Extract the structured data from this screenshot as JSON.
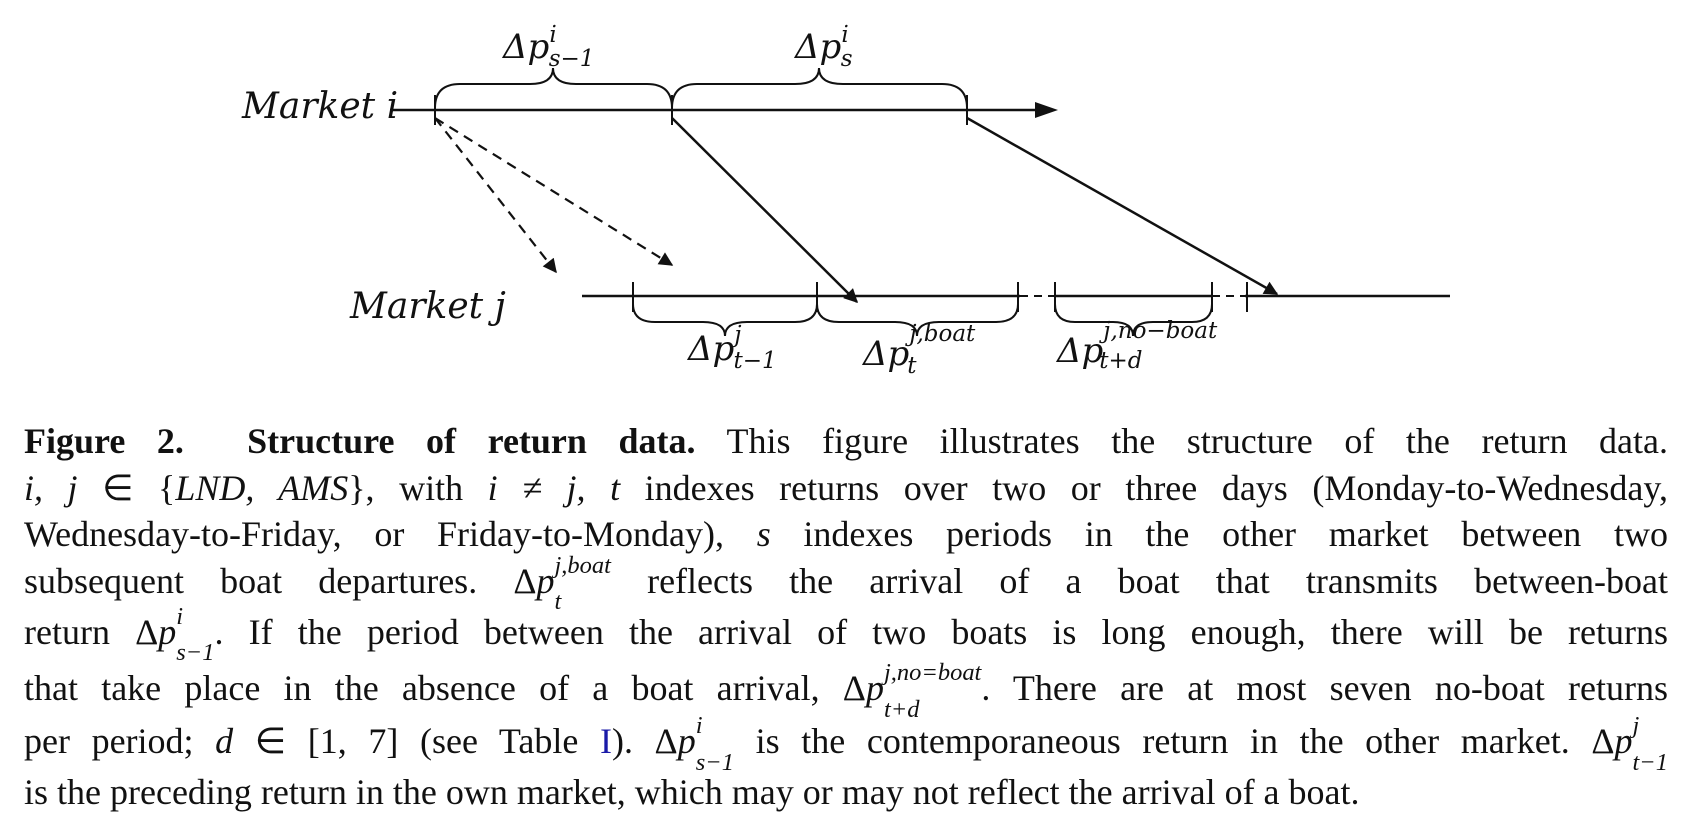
{
  "figure": {
    "market_i": "Market i",
    "market_j": "Market j",
    "delta": "Δp",
    "brace_i1": {
      "sup": "i",
      "sub": "s−1"
    },
    "brace_i2": {
      "sup": "i",
      "sub": "s"
    },
    "brace_j1": {
      "sup": "j",
      "sub": "t−1"
    },
    "brace_j2": {
      "sup": "j,boat",
      "sub": "t"
    },
    "brace_j3": {
      "sup": "j,no−boat",
      "sub": "t+d"
    }
  },
  "caption": {
    "label": "Figure 2.",
    "title": "Structure of return data.",
    "t1": "This figure illustrates the structure of the return data.",
    "t2a": "i, j",
    "t2b": " ∈ {",
    "t2c": "LND, AMS",
    "t2d": "}, with ",
    "t2e": "i ≠ j, t",
    "t2f": " indexes returns over two or three days (Monday-to-Wednesday,",
    "t3a": "Wednesday-to-Friday, or Friday-to-Monday), ",
    "t3b": "s",
    "t3c": " indexes periods in the other market between two",
    "t4a": "subsequent boat departures. Δ",
    "t4p": "p",
    "t4sup": "j,boat",
    "t4sub": "t",
    "t4b": " reflects the arrival of a boat that transmits between-boat",
    "t5a": "return Δ",
    "t5p": "p",
    "t5sup": "i",
    "t5sub": "s−1",
    "t5b": ". If the period between the arrival of two boats is long enough, there will be returns",
    "t6a": "that take place in the absence of a boat arrival, Δ",
    "t6p": "p",
    "t6sup": "j,no=boat",
    "t6sub": "t+d",
    "t6b": ". There are at most seven no-boat returns",
    "t7a": "per period; ",
    "t7d": "d",
    "t7b": " ∈ [1, 7] (see Table ",
    "t7link": "I",
    "t7c": "). Δ",
    "t7p": "p",
    "t7sup": "i",
    "t7sub": "s−1",
    "t7e": " is the contemporaneous return in the other market. Δ",
    "t7p2": "p",
    "t7sup2": "j",
    "t7sub2": "t−1",
    "t8": "is the preceding return in the own market, which may or may not reflect the arrival of a boat."
  }
}
